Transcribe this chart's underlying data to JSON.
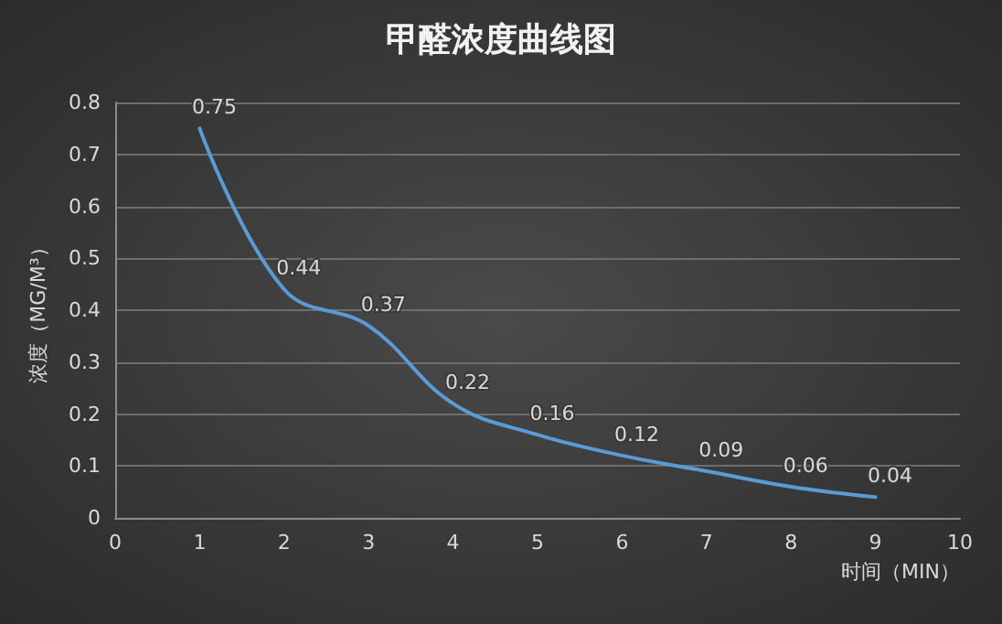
{
  "chart_data": {
    "type": "line",
    "title": "甲醛浓度曲线图",
    "xlabel": "时间（MIN）",
    "ylabel": "浓度（MG/M³）",
    "x": [
      1,
      2,
      3,
      4,
      5,
      6,
      7,
      8,
      9
    ],
    "series": [
      {
        "color": "#5b9bd5",
        "values": [
          0.75,
          0.44,
          0.37,
          0.22,
          0.16,
          0.12,
          0.09,
          0.06,
          0.04
        ]
      }
    ],
    "xlim": [
      0,
      10
    ],
    "xticks": [
      0,
      1,
      2,
      3,
      4,
      5,
      6,
      7,
      8,
      9,
      10
    ],
    "ylim": [
      0,
      0.8
    ],
    "yticks": [
      0,
      0.1,
      0.2,
      0.3,
      0.4,
      0.5,
      0.6,
      0.7,
      0.8
    ],
    "grid": "y",
    "data_labels": true,
    "marker": "none",
    "line_style": "solid"
  }
}
